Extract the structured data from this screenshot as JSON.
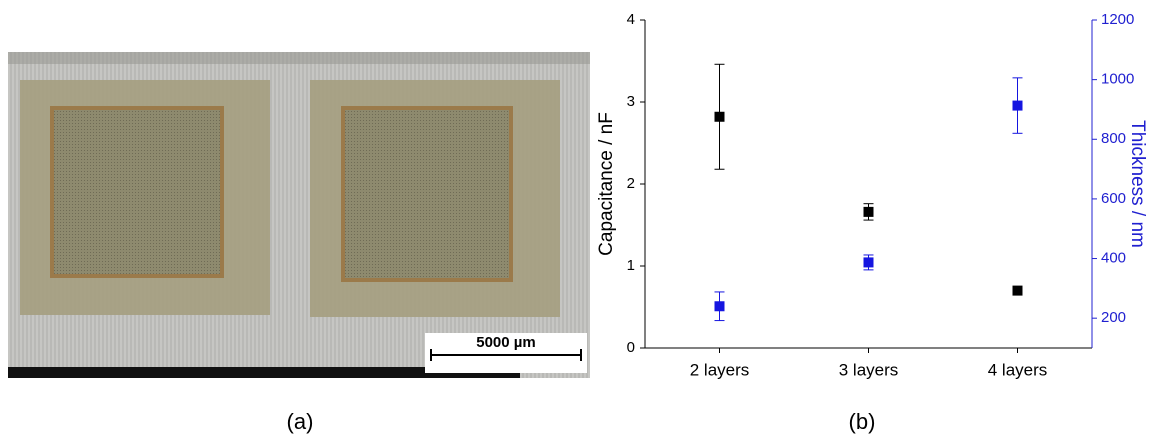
{
  "chart_data": {
    "type": "scatter",
    "categories": [
      "2 layers",
      "3 layers",
      "4 layers"
    ],
    "ylabel": "Capacitance / nF",
    "y2label": "Thickness / nm",
    "ylim": [
      0,
      4
    ],
    "yticks": [
      0,
      1,
      2,
      3,
      4
    ],
    "y2lim": [
      100,
      1200
    ],
    "y2ticks": [
      200,
      400,
      600,
      800,
      1000,
      1200
    ],
    "y2color": "#2020d0",
    "series": [
      {
        "color": "#000000",
        "values": [
          2.82,
          1.66,
          0.7
        ],
        "errors": [
          0.64,
          0.1,
          0.04
        ]
      },
      {
        "color": "#1515e0",
        "axis": "y2",
        "values": [
          240,
          387,
          913
        ],
        "errors": [
          48,
          25,
          93
        ]
      }
    ]
  },
  "panel_a": {
    "scale_bar": "5000 µm",
    "caption": "(a)"
  },
  "panel_b": {
    "caption": "(b)"
  }
}
